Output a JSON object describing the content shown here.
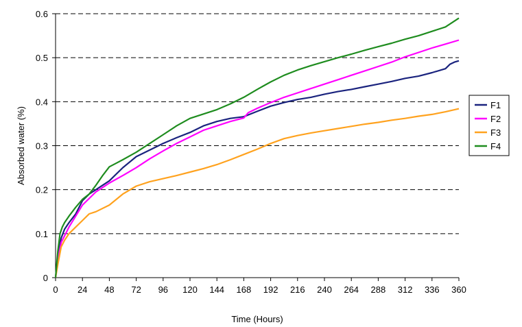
{
  "chart_data": {
    "type": "line",
    "title": "",
    "xlabel": "Time (Hours)",
    "ylabel": "Absorbed water (%)",
    "xlim": [
      0,
      360
    ],
    "ylim": [
      0,
      0.6
    ],
    "xticks": [
      0,
      24,
      48,
      72,
      96,
      120,
      144,
      168,
      192,
      216,
      240,
      264,
      288,
      312,
      336,
      360
    ],
    "xtick_labels": [
      "0",
      "24",
      "48",
      "72",
      "96",
      "120",
      "144",
      "168",
      "192",
      "216",
      "240",
      "264",
      "288",
      "312",
      "336",
      "360"
    ],
    "yticks": [
      0,
      0.1,
      0.2,
      0.3,
      0.4,
      0.5,
      0.6
    ],
    "ytick_labels": [
      "0",
      "0.1",
      "0.2",
      "0.3",
      "0.4",
      "0.5",
      "0.6"
    ],
    "grid": "horizontal-dashed",
    "legend_position": "right",
    "series": [
      {
        "name": "F1",
        "color": "#1a237e",
        "x": [
          0,
          2,
          5,
          8,
          12,
          18,
          24,
          30,
          36,
          48,
          60,
          72,
          84,
          96,
          108,
          120,
          132,
          144,
          156,
          168,
          180,
          192,
          204,
          216,
          228,
          240,
          252,
          264,
          276,
          288,
          300,
          312,
          324,
          336,
          348,
          352,
          356,
          360
        ],
        "y": [
          0,
          0.05,
          0.09,
          0.11,
          0.125,
          0.145,
          0.175,
          0.19,
          0.2,
          0.22,
          0.25,
          0.275,
          0.29,
          0.305,
          0.318,
          0.33,
          0.345,
          0.355,
          0.362,
          0.366,
          0.378,
          0.39,
          0.398,
          0.405,
          0.41,
          0.417,
          0.423,
          0.428,
          0.434,
          0.44,
          0.446,
          0.453,
          0.458,
          0.466,
          0.475,
          0.485,
          0.49,
          0.493
        ]
      },
      {
        "name": "F2",
        "color": "#ff00ff",
        "x": [
          0,
          2,
          5,
          8,
          12,
          18,
          24,
          30,
          36,
          48,
          60,
          72,
          84,
          96,
          108,
          120,
          132,
          144,
          156,
          168,
          172,
          180,
          192,
          204,
          216,
          228,
          240,
          252,
          264,
          276,
          288,
          300,
          312,
          324,
          336,
          348,
          360
        ],
        "y": [
          0,
          0.04,
          0.08,
          0.095,
          0.115,
          0.14,
          0.165,
          0.18,
          0.195,
          0.215,
          0.232,
          0.25,
          0.27,
          0.288,
          0.305,
          0.32,
          0.335,
          0.345,
          0.355,
          0.363,
          0.375,
          0.385,
          0.398,
          0.41,
          0.42,
          0.43,
          0.44,
          0.45,
          0.46,
          0.47,
          0.48,
          0.49,
          0.502,
          0.512,
          0.522,
          0.531,
          0.54
        ]
      },
      {
        "name": "F3",
        "color": "#ffa21e",
        "x": [
          0,
          2,
          5,
          8,
          12,
          18,
          24,
          30,
          36,
          48,
          60,
          72,
          84,
          96,
          108,
          120,
          132,
          144,
          156,
          168,
          180,
          192,
          204,
          216,
          228,
          240,
          252,
          264,
          276,
          288,
          300,
          312,
          324,
          336,
          348,
          360
        ],
        "y": [
          0,
          0.03,
          0.07,
          0.085,
          0.1,
          0.115,
          0.13,
          0.145,
          0.15,
          0.165,
          0.19,
          0.208,
          0.218,
          0.225,
          0.232,
          0.24,
          0.248,
          0.257,
          0.268,
          0.28,
          0.292,
          0.305,
          0.316,
          0.323,
          0.329,
          0.334,
          0.339,
          0.344,
          0.349,
          0.353,
          0.358,
          0.362,
          0.367,
          0.371,
          0.377,
          0.384
        ]
      },
      {
        "name": "F4",
        "color": "#1e8c1e",
        "x": [
          0,
          2,
          4,
          6,
          8,
          12,
          18,
          24,
          30,
          36,
          42,
          48,
          54,
          60,
          72,
          84,
          96,
          108,
          120,
          132,
          144,
          156,
          168,
          180,
          192,
          204,
          216,
          228,
          240,
          252,
          264,
          276,
          288,
          300,
          312,
          324,
          336,
          348,
          360
        ],
        "y": [
          0,
          0.06,
          0.1,
          0.115,
          0.125,
          0.14,
          0.16,
          0.178,
          0.19,
          0.21,
          0.232,
          0.252,
          0.26,
          0.268,
          0.285,
          0.305,
          0.325,
          0.345,
          0.362,
          0.372,
          0.382,
          0.395,
          0.41,
          0.428,
          0.445,
          0.46,
          0.472,
          0.482,
          0.491,
          0.5,
          0.508,
          0.517,
          0.525,
          0.533,
          0.542,
          0.55,
          0.56,
          0.57,
          0.59
        ]
      }
    ]
  }
}
